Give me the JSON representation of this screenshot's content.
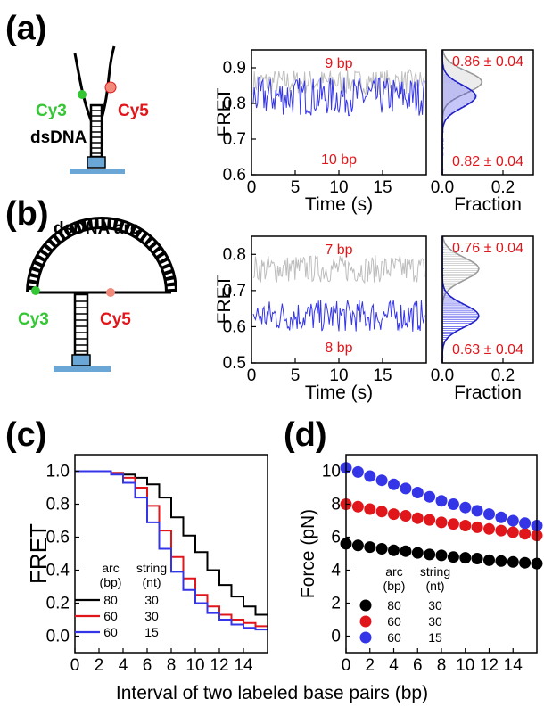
{
  "panel_labels": {
    "a": "(a)",
    "b": "(b)",
    "c": "(c)",
    "d": "(d)"
  },
  "schematic_a": {
    "cy3": "Cy3",
    "cy5": "Cy5",
    "dsdna": "dsDNA"
  },
  "schematic_b": {
    "arc": "dsDNA arc",
    "cy3": "Cy3",
    "cy5": "Cy5"
  },
  "colors": {
    "blue": "#3535e8",
    "gray": "#bdbdbd",
    "red": "#e0161b",
    "black": "#000000",
    "cy3": "#35c635"
  },
  "chart_data": [
    {
      "id": "a-trace",
      "type": "line",
      "ylabel": "FRET",
      "xlabel": "Time (s)",
      "xlim": [
        0,
        20
      ],
      "ylim": [
        0.6,
        0.95
      ],
      "xticks": [
        "0",
        "5",
        "10",
        "15"
      ],
      "yticks": [
        "0.6",
        "0.7",
        "0.8",
        "0.9"
      ],
      "annotations": [
        "9 bp",
        "10 bp"
      ],
      "series": [
        {
          "color": "#bdbdbd",
          "mean": 0.86,
          "noise": 0.022
        },
        {
          "color": "#3535e8",
          "mean": 0.82,
          "noise": 0.034
        }
      ]
    },
    {
      "id": "a-hist",
      "type": "bar",
      "xlabel": "Fraction",
      "xlim": [
        0,
        0.3
      ],
      "ylim": [
        0.6,
        0.95
      ],
      "xticks": [
        "0.0",
        "0.2"
      ],
      "annotations": [
        "0.86 ± 0.04",
        "0.82 ± 0.04"
      ],
      "series": [
        {
          "color": "#bdbdbd",
          "center": 0.86,
          "sigma": 0.04,
          "peak": 0.13
        },
        {
          "color": "#3535e8",
          "center": 0.82,
          "sigma": 0.04,
          "peak": 0.11
        }
      ]
    },
    {
      "id": "b-trace",
      "type": "line",
      "ylabel": "FRET",
      "xlabel": "Time (s)",
      "xlim": [
        0,
        20
      ],
      "ylim": [
        0.5,
        0.85
      ],
      "xticks": [
        "0",
        "5",
        "10",
        "15"
      ],
      "yticks": [
        "0.5",
        "0.6",
        "0.7",
        "0.8"
      ],
      "annotations": [
        "7 bp",
        "8 bp"
      ],
      "series": [
        {
          "color": "#bdbdbd",
          "mean": 0.76,
          "noise": 0.024
        },
        {
          "color": "#3535e8",
          "mean": 0.63,
          "noise": 0.028
        }
      ]
    },
    {
      "id": "b-hist",
      "type": "bar",
      "xlabel": "Fraction",
      "xlim": [
        0,
        0.3
      ],
      "ylim": [
        0.5,
        0.85
      ],
      "xticks": [
        "0.0",
        "0.2"
      ],
      "annotations": [
        "0.76 ± 0.04",
        "0.63 ± 0.04"
      ],
      "series": [
        {
          "color": "#bdbdbd",
          "center": 0.76,
          "sigma": 0.04,
          "peak": 0.12
        },
        {
          "color": "#3535e8",
          "center": 0.63,
          "sigma": 0.04,
          "peak": 0.12
        }
      ]
    },
    {
      "id": "c",
      "type": "line",
      "ylabel": "FRET",
      "xlim": [
        0,
        16
      ],
      "ylim": [
        -0.1,
        1.1
      ],
      "xticks": [
        "0",
        "2",
        "4",
        "6",
        "8",
        "10",
        "12",
        "14"
      ],
      "yticks": [
        "0.0",
        "0.2",
        "0.4",
        "0.6",
        "0.8",
        "1.0"
      ],
      "legend_header": [
        "arc",
        "string"
      ],
      "legend_units": [
        "(bp)",
        "(nt)"
      ],
      "series": [
        {
          "arc": "80",
          "string": "30",
          "color": "#000000",
          "values": [
            1.0,
            1.0,
            1.0,
            0.99,
            0.98,
            0.96,
            0.92,
            0.84,
            0.72,
            0.61,
            0.51,
            0.4,
            0.31,
            0.24,
            0.18,
            0.13
          ]
        },
        {
          "arc": "60",
          "string": "30",
          "color": "#e0161b",
          "values": [
            1.0,
            1.0,
            1.0,
            0.99,
            0.96,
            0.9,
            0.79,
            0.64,
            0.48,
            0.35,
            0.25,
            0.18,
            0.13,
            0.1,
            0.08,
            0.06
          ]
        },
        {
          "arc": "60",
          "string": "15",
          "color": "#3535e8",
          "values": [
            1.0,
            1.0,
            1.0,
            0.98,
            0.93,
            0.84,
            0.69,
            0.53,
            0.39,
            0.28,
            0.2,
            0.14,
            0.1,
            0.07,
            0.05,
            0.04
          ]
        }
      ]
    },
    {
      "id": "d",
      "type": "scatter",
      "ylabel": "Force (pN)",
      "xlim": [
        0,
        16
      ],
      "ylim": [
        -1,
        11
      ],
      "xticks": [
        "0",
        "2",
        "4",
        "6",
        "8",
        "10",
        "12",
        "14"
      ],
      "yticks": [
        "0",
        "2",
        "4",
        "6",
        "8",
        "10"
      ],
      "legend_header": [
        "arc",
        "string"
      ],
      "legend_units": [
        "(bp)",
        "(nt)"
      ],
      "x": [
        0,
        1,
        2,
        3,
        4,
        5,
        6,
        7,
        8,
        9,
        10,
        11,
        12,
        13,
        14,
        15,
        16
      ],
      "series": [
        {
          "arc": "80",
          "string": "30",
          "color": "#000000",
          "values": [
            5.6,
            5.5,
            5.4,
            5.3,
            5.2,
            5.15,
            5.05,
            4.95,
            4.9,
            4.8,
            4.75,
            4.7,
            4.6,
            4.55,
            4.5,
            4.45,
            4.4
          ]
        },
        {
          "arc": "60",
          "string": "30",
          "color": "#e0161b",
          "values": [
            8.0,
            7.85,
            7.7,
            7.55,
            7.4,
            7.3,
            7.15,
            7.05,
            6.9,
            6.8,
            6.7,
            6.6,
            6.5,
            6.4,
            6.3,
            6.2,
            6.1
          ]
        },
        {
          "arc": "60",
          "string": "15",
          "color": "#3535e8",
          "values": [
            10.2,
            9.95,
            9.7,
            9.45,
            9.2,
            8.95,
            8.7,
            8.45,
            8.2,
            8.0,
            7.8,
            7.6,
            7.4,
            7.2,
            7.0,
            6.85,
            6.7
          ]
        }
      ]
    }
  ],
  "shared_xlabel": "Interval of two labeled base pairs (bp)"
}
